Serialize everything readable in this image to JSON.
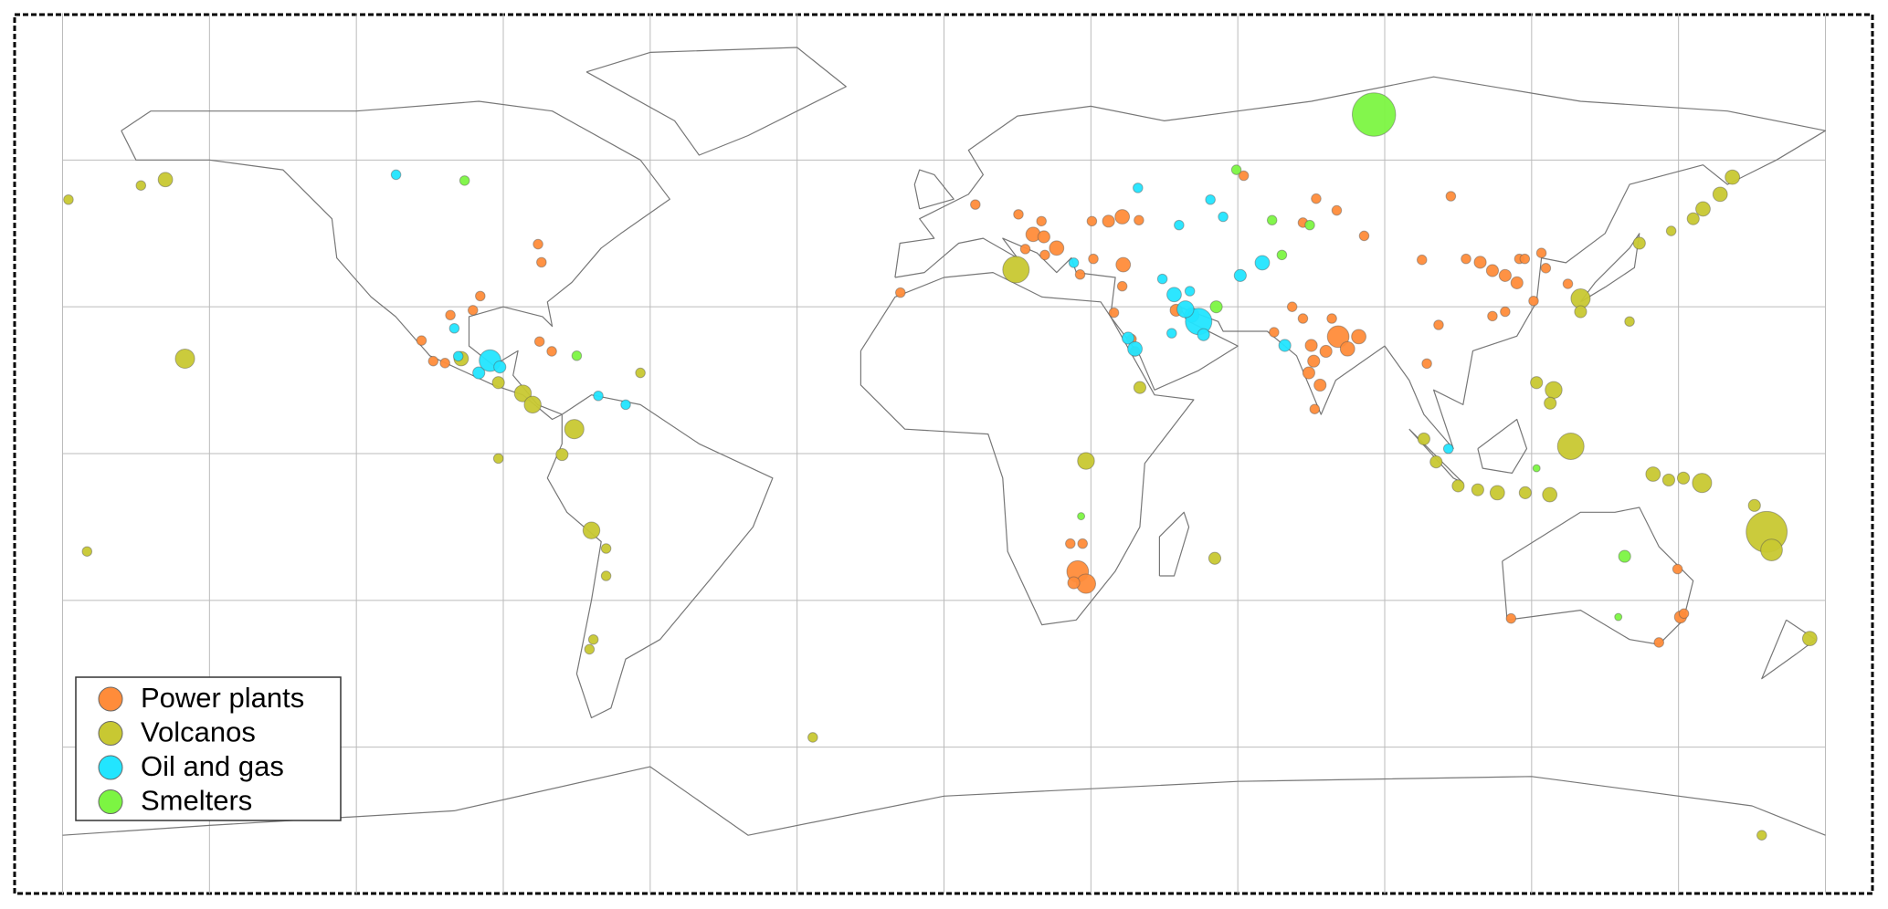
{
  "legend_position": "lower left",
  "sources": [
    {
      "name": "Power plants",
      "color": "#ff8c3a",
      "points": [
        [
          -106.7,
          23.1,
          4
        ],
        [
          -104.3,
          18.9,
          4
        ],
        [
          -101.9,
          18.5,
          4
        ],
        [
          -100.8,
          28.3,
          4
        ],
        [
          -94.7,
          32.2,
          4
        ],
        [
          -96.2,
          29.3,
          4
        ],
        [
          -82.9,
          42.8,
          4
        ],
        [
          -82.2,
          39.1,
          4
        ],
        [
          -82.6,
          22.9,
          4
        ],
        [
          -80.1,
          20.9,
          4
        ],
        [
          6.4,
          50.9,
          4
        ],
        [
          18.2,
          44.8,
          6
        ],
        [
          20.4,
          44.3,
          5
        ],
        [
          23,
          42,
          6
        ],
        [
          20.6,
          40.6,
          4
        ],
        [
          16.6,
          41.8,
          4
        ],
        [
          30.5,
          39.8,
          4
        ],
        [
          27.8,
          36.6,
          4
        ],
        [
          33.6,
          47.5,
          5
        ],
        [
          36.4,
          48.4,
          6
        ],
        [
          39.8,
          47.7,
          4
        ],
        [
          30.2,
          47.5,
          4
        ],
        [
          36.6,
          38.6,
          6
        ],
        [
          36.4,
          34.2,
          4
        ],
        [
          34.7,
          28.8,
          4
        ],
        [
          19.9,
          47.5,
          4
        ],
        [
          15.2,
          48.9,
          4
        ],
        [
          76,
          52.1,
          4
        ],
        [
          73.3,
          47.2,
          4
        ],
        [
          80.2,
          49.7,
          4
        ],
        [
          85.8,
          44.5,
          4
        ],
        [
          61.2,
          56.8,
          4
        ],
        [
          103.5,
          52.6,
          4
        ],
        [
          97.6,
          39.6,
          4
        ],
        [
          47.4,
          29.3,
          5
        ],
        [
          39,
          20.9,
          4
        ],
        [
          38.3,
          23.4,
          4
        ],
        [
          67.4,
          24.8,
          4
        ],
        [
          71.1,
          30,
          4
        ],
        [
          75,
          22.1,
          5
        ],
        [
          75.5,
          18.9,
          5
        ],
        [
          78,
          20.9,
          5
        ],
        [
          80.5,
          23.9,
          9
        ],
        [
          82.4,
          21.4,
          6
        ],
        [
          84.7,
          23.9,
          6
        ],
        [
          76.8,
          14,
          5
        ],
        [
          75.7,
          9.1,
          4
        ],
        [
          74.5,
          16.5,
          5
        ],
        [
          79.2,
          27.6,
          4
        ],
        [
          73.3,
          27.6,
          4
        ],
        [
          101,
          26.3,
          4
        ],
        [
          106.6,
          39.8,
          4
        ],
        [
          109.5,
          39.1,
          5
        ],
        [
          112,
          37.4,
          5
        ],
        [
          114.6,
          36.4,
          5
        ],
        [
          117.5,
          39.8,
          4
        ],
        [
          118.6,
          39.8,
          4
        ],
        [
          122,
          41,
          4
        ],
        [
          117,
          34.9,
          5
        ],
        [
          112,
          28.1,
          4
        ],
        [
          120.4,
          31.2,
          4
        ],
        [
          122.9,
          37.9,
          4
        ],
        [
          114.6,
          29,
          4
        ],
        [
          127.4,
          34.7,
          4
        ],
        [
          98.6,
          18.4,
          4
        ],
        [
          28.3,
          -18.4,
          4
        ],
        [
          27.3,
          -24.1,
          9
        ],
        [
          29,
          -26.6,
          8
        ],
        [
          26.5,
          -26.4,
          5
        ],
        [
          25.8,
          -18.4,
          4
        ],
        [
          149.8,
          -23.6,
          4
        ],
        [
          150.4,
          -33.4,
          5
        ],
        [
          151.1,
          -32.7,
          4
        ],
        [
          146,
          -38.6,
          4
        ],
        [
          115.8,
          -33.7,
          4
        ],
        [
          -8.9,
          32.9,
          4
        ]
      ]
    },
    {
      "name": "Volcanos",
      "color": "#c8c832",
      "points": [
        [
          -178.8,
          51.9,
          4
        ],
        [
          -164,
          54.8,
          4
        ],
        [
          -159,
          56,
          6
        ],
        [
          -155,
          19.4,
          8
        ],
        [
          -175,
          -20,
          4
        ],
        [
          -98.6,
          19.4,
          6
        ],
        [
          -91,
          14.5,
          5
        ],
        [
          -86,
          12.3,
          7
        ],
        [
          -84,
          10,
          7
        ],
        [
          -75.5,
          5,
          8
        ],
        [
          -78,
          -0.2,
          5
        ],
        [
          -91,
          -1,
          4
        ],
        [
          -62,
          16.5,
          4
        ],
        [
          -72,
          -15.7,
          7
        ],
        [
          -69,
          -19.4,
          4
        ],
        [
          -69,
          -25,
          4
        ],
        [
          -71.6,
          -38,
          4
        ],
        [
          -72.4,
          -40,
          4
        ],
        [
          -26.8,
          -58,
          4
        ],
        [
          14.7,
          37.6,
          11
        ],
        [
          29,
          -1.5,
          7
        ],
        [
          40,
          13.5,
          5
        ],
        [
          55.3,
          -21.4,
          5
        ],
        [
          142,
          43,
          5
        ],
        [
          148.5,
          45.5,
          4
        ],
        [
          153,
          48,
          5
        ],
        [
          155,
          50,
          6
        ],
        [
          158.5,
          53,
          6
        ],
        [
          161,
          56.5,
          6
        ],
        [
          130,
          31.7,
          8
        ],
        [
          130,
          29,
          5
        ],
        [
          140,
          27,
          4
        ],
        [
          121,
          14.5,
          5
        ],
        [
          124.5,
          13,
          7
        ],
        [
          123.8,
          10.3,
          5
        ],
        [
          128,
          1.5,
          11
        ],
        [
          98,
          3,
          5
        ],
        [
          100.5,
          -1.7,
          5
        ],
        [
          105,
          -6.6,
          5
        ],
        [
          109,
          -7.4,
          5
        ],
        [
          113,
          -8,
          6
        ],
        [
          118.7,
          -8,
          5
        ],
        [
          123.7,
          -8.4,
          6
        ],
        [
          144.8,
          -4.2,
          6
        ],
        [
          148,
          -5.4,
          5
        ],
        [
          151,
          -5,
          5
        ],
        [
          154.8,
          -6,
          8
        ],
        [
          165.5,
          -10.6,
          5
        ],
        [
          168,
          -16,
          17
        ],
        [
          169,
          -19.7,
          9
        ],
        [
          176.8,
          -37.8,
          6
        ],
        [
          167,
          -78,
          4
        ]
      ]
    },
    {
      "name": "Oil and gas",
      "color": "#22e5ff",
      "points": [
        [
          -111.9,
          57,
          4
        ],
        [
          -100,
          25.6,
          4
        ],
        [
          -99.2,
          19.9,
          4
        ],
        [
          -95,
          16.5,
          5
        ],
        [
          -92.7,
          19,
          9
        ],
        [
          -90.7,
          17.7,
          5
        ],
        [
          -70.6,
          11.8,
          4
        ],
        [
          -65,
          10,
          4
        ],
        [
          26.5,
          39,
          4
        ],
        [
          39.6,
          54.3,
          4
        ],
        [
          48,
          46.7,
          4
        ],
        [
          54.4,
          51.9,
          4
        ],
        [
          57,
          48.4,
          4
        ],
        [
          65,
          39,
          6
        ],
        [
          60.5,
          36.4,
          5
        ],
        [
          44.6,
          35.7,
          4
        ],
        [
          47,
          32.5,
          6
        ],
        [
          50.2,
          33.2,
          4
        ],
        [
          50.6,
          28.3,
          6
        ],
        [
          52,
          27,
          11
        ],
        [
          49.3,
          29.5,
          7
        ],
        [
          53,
          24.3,
          5
        ],
        [
          46.5,
          24.6,
          4
        ],
        [
          37.6,
          23.6,
          5
        ],
        [
          39,
          21.4,
          6
        ],
        [
          69.6,
          22.1,
          5
        ],
        [
          103,
          1,
          4
        ]
      ]
    },
    {
      "name": "Smelters",
      "color": "#7cf542",
      "points": [
        [
          87.8,
          69.3,
          18
        ],
        [
          -97.9,
          55.8,
          4
        ],
        [
          -75,
          20,
          4
        ],
        [
          55.6,
          30,
          5
        ],
        [
          59.7,
          58,
          4
        ],
        [
          67,
          47.7,
          4
        ],
        [
          74.7,
          46.7,
          4
        ],
        [
          69,
          40.6,
          4
        ],
        [
          139,
          -21,
          5
        ],
        [
          137.7,
          -33.4,
          3
        ],
        [
          28,
          -12.8,
          3
        ],
        [
          121,
          -3,
          3
        ]
      ]
    }
  ]
}
